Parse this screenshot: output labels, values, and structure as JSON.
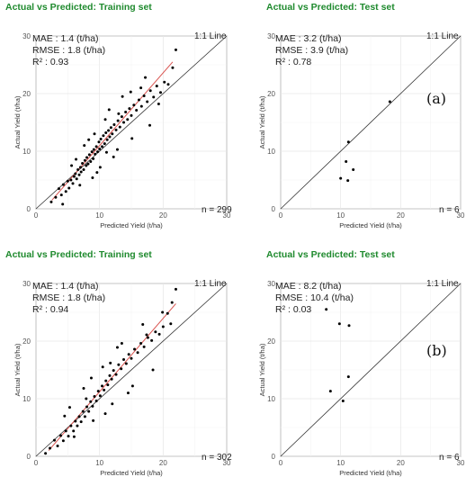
{
  "chart_data": [
    {
      "id": "a-train",
      "type": "scatter",
      "title": "Actual vs Predicted: Training set",
      "xlabel": "Predicted Yield (t/ha)",
      "ylabel": "Actual Yield (t/ha)",
      "xlim": [
        0,
        30
      ],
      "ylim": [
        0,
        30
      ],
      "xticks": [
        "0",
        "10",
        "20",
        "30"
      ],
      "yticks": [
        "0",
        "10",
        "20",
        "30"
      ],
      "grid": true,
      "reference_line": "1:1 Line",
      "stats": [
        "MAE : 1.4 (t/ha)",
        "RMSE : 1.8 (t/ha)",
        "R² : 0.93"
      ],
      "n_label": "n = 299",
      "panel_letter": "",
      "fit_line": [
        [
          2.5,
          1.5
        ],
        [
          21.5,
          25.5
        ]
      ],
      "fit_color": "#d9534f",
      "points_x": [
        2.4,
        3.1,
        3.6,
        4.0,
        4.3,
        4.7,
        5.0,
        5.2,
        5.5,
        5.8,
        6.0,
        6.2,
        6.4,
        6.6,
        6.8,
        7.0,
        7.1,
        7.3,
        7.5,
        7.7,
        7.9,
        8.0,
        8.2,
        8.4,
        8.6,
        8.8,
        9.0,
        9.1,
        9.3,
        9.5,
        9.7,
        9.9,
        10.0,
        10.2,
        10.4,
        10.6,
        10.8,
        11.0,
        11.2,
        11.4,
        11.6,
        11.8,
        12.0,
        12.3,
        12.6,
        12.9,
        13.2,
        13.5,
        13.8,
        14.1,
        14.4,
        14.7,
        15.0,
        15.4,
        15.8,
        16.2,
        16.6,
        17.0,
        17.5,
        18.0,
        18.5,
        19.0,
        19.6,
        20.2,
        20.8,
        21.5,
        22.0,
        4.2,
        5.6,
        6.9,
        8.3,
        9.6,
        10.9,
        12.2,
        13.6,
        15.1,
        16.5,
        17.9,
        9.2,
        10.1,
        11.5,
        7.6,
        6.3,
        12.8,
        14.9,
        13.0,
        17.2,
        19.3,
        8.9,
        11.1
      ],
      "points_y": [
        1.2,
        2.0,
        3.5,
        2.4,
        4.2,
        3.0,
        4.8,
        3.6,
        5.0,
        4.4,
        5.6,
        6.1,
        5.2,
        6.8,
        5.9,
        7.2,
        6.4,
        7.9,
        6.8,
        8.4,
        7.5,
        8.9,
        7.8,
        9.4,
        8.2,
        9.9,
        8.7,
        10.3,
        9.5,
        10.8,
        9.9,
        11.6,
        10.4,
        12.1,
        10.8,
        12.7,
        11.3,
        13.2,
        12.0,
        13.6,
        12.5,
        14.1,
        13.0,
        14.6,
        13.7,
        15.3,
        14.2,
        16.0,
        15.0,
        16.8,
        15.5,
        17.4,
        16.2,
        18.0,
        17.1,
        18.9,
        17.8,
        19.6,
        18.6,
        20.5,
        19.4,
        21.3,
        20.2,
        22.0,
        21.6,
        24.5,
        27.6,
        0.8,
        7.5,
        4.1,
        12.0,
        6.3,
        15.5,
        9.0,
        19.5,
        12.2,
        21.0,
        14.5,
        13.0,
        7.2,
        17.2,
        11.0,
        8.6,
        10.3,
        20.3,
        16.5,
        22.8,
        18.2,
        5.4,
        9.8
      ]
    },
    {
      "id": "a-test",
      "type": "scatter",
      "title": "Actual vs Predicted: Test set",
      "xlabel": "Predicted Yield (t/ha)",
      "ylabel": "Actual Yield (t/ha)",
      "xlim": [
        0,
        30
      ],
      "ylim": [
        0,
        30
      ],
      "xticks": [
        "0",
        "10",
        "20",
        "30"
      ],
      "yticks": [
        "0",
        "10",
        "20",
        "30"
      ],
      "grid": true,
      "reference_line": "1:1 Line",
      "stats": [
        "MAE : 3.2 (t/ha)",
        "RMSE : 3.9 (t/ha)",
        "R² : 0.78"
      ],
      "n_label": "n = 6",
      "panel_letter": "(a)",
      "points_x": [
        10.0,
        10.9,
        11.2,
        11.3,
        12.1,
        18.2
      ],
      "points_y": [
        5.3,
        8.2,
        4.9,
        11.6,
        6.8,
        18.6
      ]
    },
    {
      "id": "b-train",
      "type": "scatter",
      "title": "Actual vs Predicted: Training set",
      "xlabel": "Predicted Yield (t/ha)",
      "ylabel": "Actual Yield (t/ha)",
      "xlim": [
        0,
        30
      ],
      "ylim": [
        0,
        30
      ],
      "xticks": [
        "0",
        "10",
        "20",
        "30"
      ],
      "yticks": [
        "0",
        "10",
        "20",
        "30"
      ],
      "grid": true,
      "reference_line": "1:1 Line",
      "stats": [
        "MAE : 1.4 (t/ha)",
        "RMSE : 1.8 (t/ha)",
        "R² : 0.94"
      ],
      "n_label": "n = 302",
      "panel_letter": "",
      "fit_line": [
        [
          2.0,
          1.0
        ],
        [
          22.0,
          26.5
        ]
      ],
      "fit_color": "#d9534f",
      "points_x": [
        1.5,
        2.2,
        2.9,
        3.4,
        3.9,
        4.3,
        4.7,
        5.1,
        5.5,
        5.9,
        6.2,
        6.5,
        6.8,
        7.1,
        7.4,
        7.7,
        8.0,
        8.3,
        8.6,
        8.9,
        9.2,
        9.5,
        9.8,
        10.1,
        10.4,
        10.7,
        11.0,
        11.3,
        11.6,
        11.9,
        12.2,
        12.6,
        13.0,
        13.4,
        13.8,
        14.2,
        14.6,
        15.0,
        15.5,
        16.0,
        16.5,
        17.0,
        17.6,
        18.2,
        18.8,
        19.4,
        20.0,
        20.7,
        21.4,
        22.0,
        4.5,
        6.0,
        7.5,
        9.0,
        10.5,
        12.0,
        13.5,
        15.2,
        16.8,
        18.4,
        8.7,
        10.9,
        12.8,
        14.5,
        5.3,
        19.9,
        17.4,
        11.7,
        7.9,
        21.2
      ],
      "points_y": [
        0.5,
        1.4,
        2.8,
        1.8,
        3.6,
        2.7,
        4.4,
        3.5,
        5.3,
        4.4,
        6.1,
        5.3,
        6.9,
        6.0,
        7.8,
        6.9,
        8.6,
        7.8,
        9.5,
        8.7,
        10.4,
        9.6,
        11.3,
        10.5,
        12.2,
        11.5,
        13.1,
        12.4,
        14.0,
        13.4,
        14.9,
        14.2,
        15.9,
        15.2,
        16.8,
        16.1,
        17.7,
        17.0,
        18.6,
        18.0,
        19.6,
        19.0,
        20.6,
        20.1,
        21.6,
        21.2,
        22.5,
        24.8,
        26.7,
        29.0,
        7.0,
        3.4,
        11.8,
        6.2,
        15.5,
        9.1,
        19.6,
        12.2,
        22.9,
        15.0,
        13.6,
        7.4,
        18.9,
        11.0,
        8.5,
        25.0,
        21.1,
        16.2,
        10.0,
        23.0
      ]
    },
    {
      "id": "b-test",
      "type": "scatter",
      "title": "Actual vs Predicted: Test set",
      "xlabel": "Predicted Yield (t/ha)",
      "ylabel": "Actual Yield (t/ha)",
      "xlim": [
        0,
        30
      ],
      "ylim": [
        0,
        30
      ],
      "xticks": [
        "0",
        "10",
        "20",
        "30"
      ],
      "yticks": [
        "0",
        "10",
        "20",
        "30"
      ],
      "grid": true,
      "reference_line": "1:1 Line",
      "stats": [
        "MAE : 8.2 (t/ha)",
        "RMSE : 10.4 (t/ha)",
        "R² : 0.03"
      ],
      "n_label": "n = 6",
      "panel_letter": "(b)",
      "points_x": [
        7.6,
        8.3,
        9.8,
        10.4,
        11.3,
        11.4
      ],
      "points_y": [
        25.5,
        11.3,
        23.0,
        9.6,
        13.8,
        22.7
      ]
    }
  ]
}
